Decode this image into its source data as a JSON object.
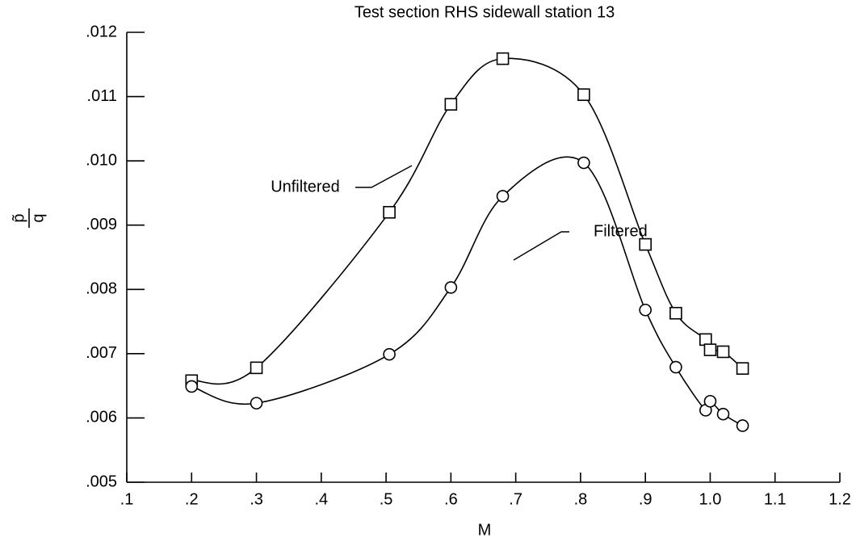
{
  "chart_data": {
    "type": "line",
    "title": "Test section RHS sidewall station 13",
    "x_label": "M",
    "y_label": {
      "numerator": "p̃",
      "denominator": "q"
    },
    "series": [
      {
        "name": "Unfiltered",
        "color": "#000000",
        "marker": "square",
        "x": [
          0.2,
          0.3,
          0.505,
          0.6,
          0.68,
          0.805,
          0.9,
          0.947,
          0.993,
          1.0,
          1.02,
          1.05
        ],
        "values": [
          0.00658,
          0.00678,
          0.0092,
          0.01088,
          0.01159,
          0.01103,
          0.0087,
          0.00763,
          0.00722,
          0.00706,
          0.00703,
          0.00677
        ]
      },
      {
        "name": "Filtered",
        "color": "#000000",
        "marker": "circle",
        "x": [
          0.2,
          0.3,
          0.505,
          0.6,
          0.68,
          0.805,
          0.9,
          0.947,
          0.993,
          1.0,
          1.02,
          1.05
        ],
        "values": [
          0.00649,
          0.00623,
          0.00699,
          0.00803,
          0.00945,
          0.00997,
          0.00768,
          0.00679,
          0.00612,
          0.00626,
          0.00606,
          0.00588
        ]
      }
    ],
    "xlim": [
      0.1,
      1.2
    ],
    "xticks": [
      {
        "value": 0.1,
        "label": ".1"
      },
      {
        "value": 0.2,
        "label": ".2"
      },
      {
        "value": 0.3,
        "label": ".3"
      },
      {
        "value": 0.4,
        "label": ".4"
      },
      {
        "value": 0.5,
        "label": ".5"
      },
      {
        "value": 0.6,
        "label": ".6"
      },
      {
        "value": 0.7,
        "label": ".7"
      },
      {
        "value": 0.8,
        "label": ".8"
      },
      {
        "value": 0.9,
        "label": ".9"
      },
      {
        "value": 1.0,
        "label": "1.0"
      },
      {
        "value": 1.1,
        "label": "1.1"
      },
      {
        "value": 1.2,
        "label": "1.2"
      }
    ],
    "ylim": [
      0.005,
      0.012
    ],
    "yticks": [
      {
        "value": 0.005,
        "label": ".005"
      },
      {
        "value": 0.006,
        "label": ".006"
      },
      {
        "value": 0.007,
        "label": ".007"
      },
      {
        "value": 0.008,
        "label": ".008"
      },
      {
        "value": 0.009,
        "label": ".009"
      },
      {
        "value": 0.01,
        "label": ".010"
      },
      {
        "value": 0.011,
        "label": ".011"
      },
      {
        "value": 0.012,
        "label": ".012"
      }
    ],
    "grid": false
  }
}
